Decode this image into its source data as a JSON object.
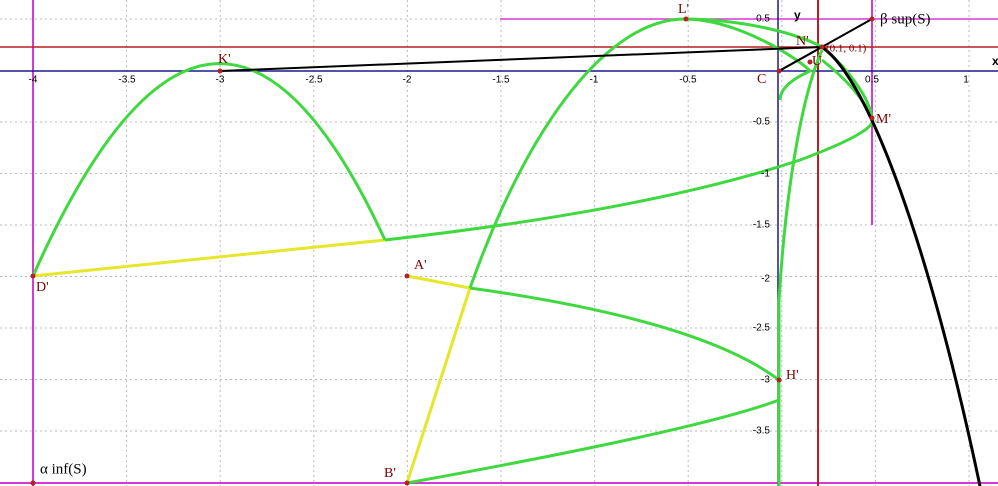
{
  "axes": {
    "x_name": "x",
    "y_name": "y",
    "x_tick_labels": [
      "-4",
      "-3.5",
      "-3",
      "-2.5",
      "-2",
      "-1.5",
      "-1",
      "-0.5",
      "0.5",
      "1"
    ],
    "y_tick_labels": [
      "0.5",
      "-0.5",
      "-1",
      "-1.5",
      "-2",
      "-2.5",
      "-3",
      "-3.5"
    ]
  },
  "points": [
    {
      "label": "K'"
    },
    {
      "label": "L'"
    },
    {
      "label": "N'"
    },
    {
      "label": "C"
    },
    {
      "label": "U"
    },
    {
      "label": "M'"
    },
    {
      "label": "D'"
    },
    {
      "label": "A'"
    },
    {
      "label": "H'"
    },
    {
      "label": "B'"
    }
  ],
  "annotations": {
    "sup": "β sup(S)",
    "inf": "α inf(S)",
    "coords": "(0.1, 0.1)"
  }
}
